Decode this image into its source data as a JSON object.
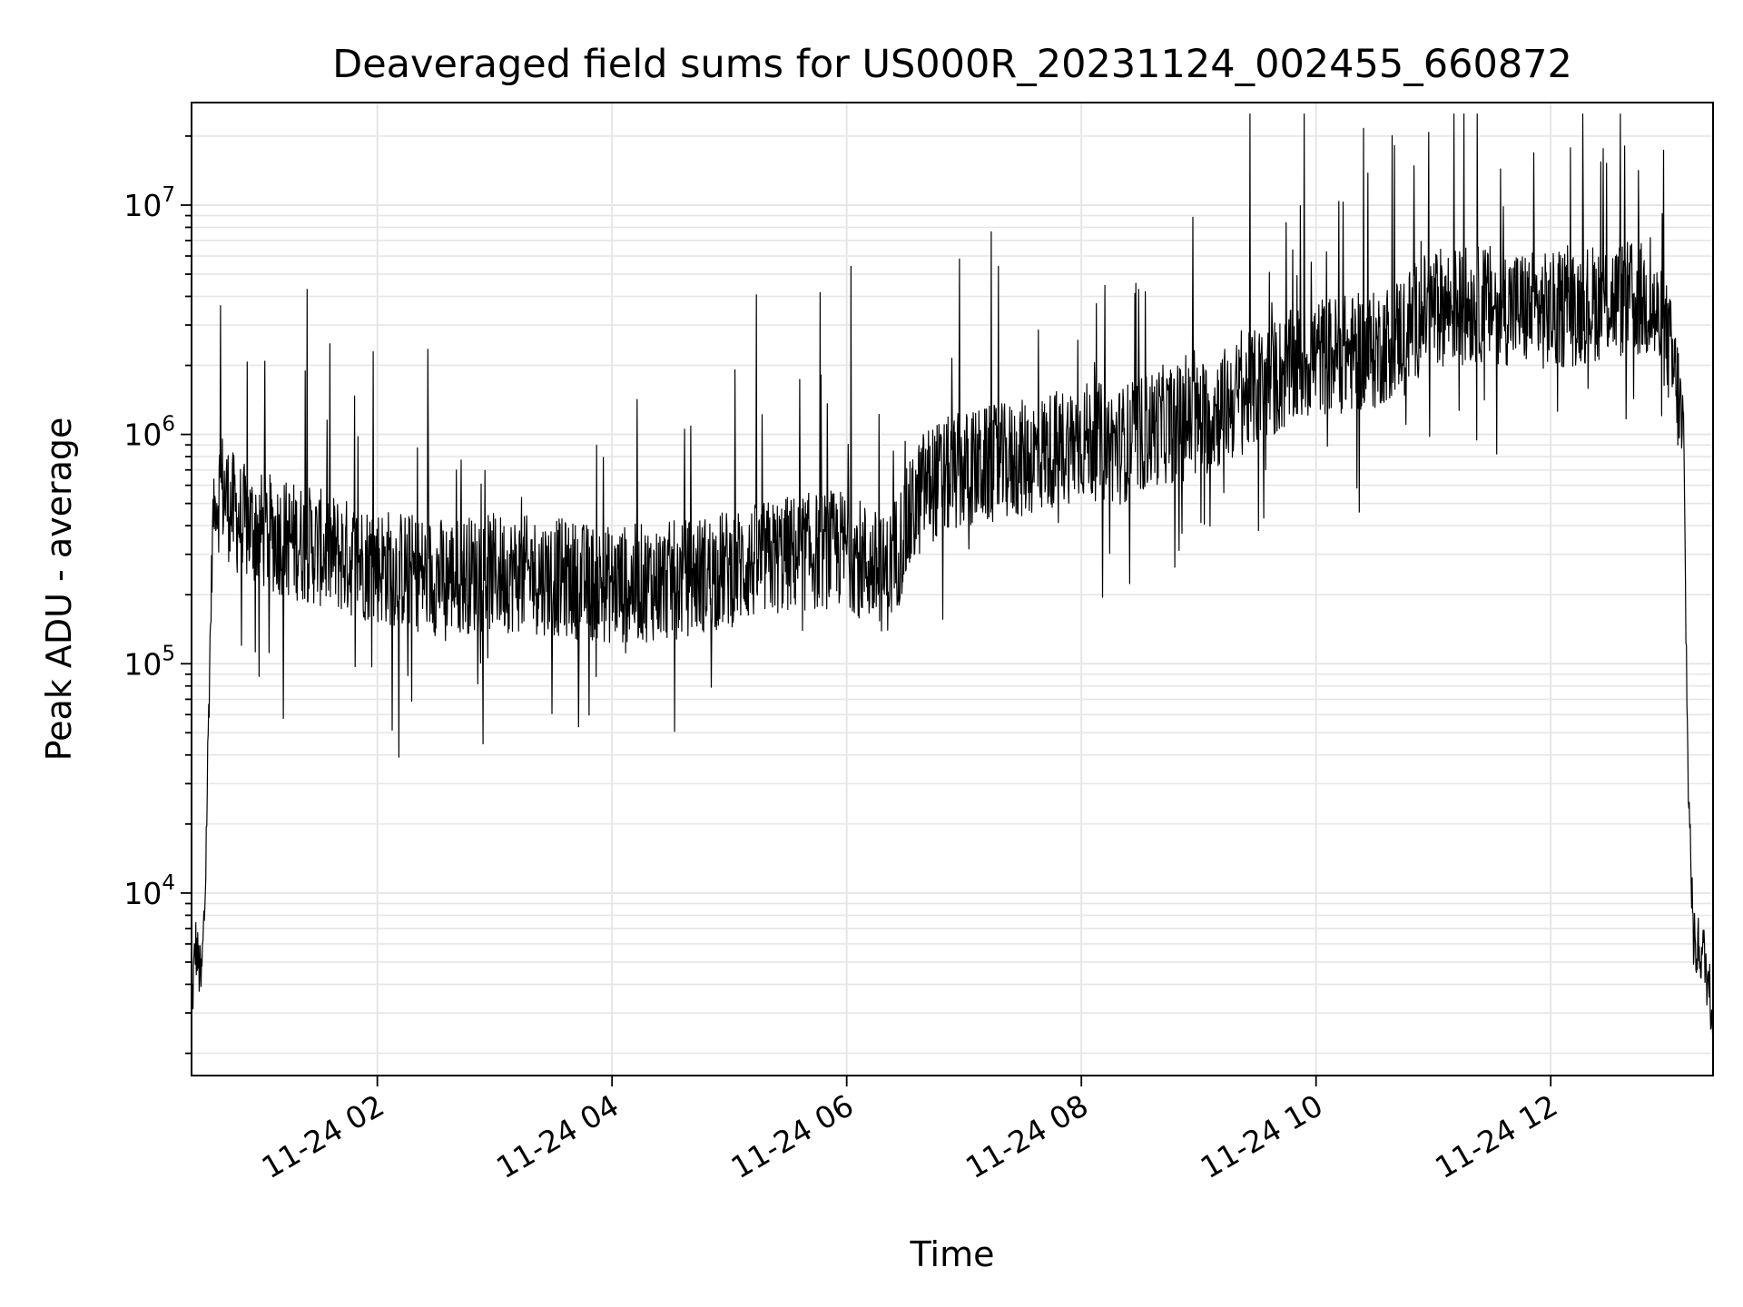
{
  "chart_data": {
    "type": "line",
    "title": "Deaveraged field sums for US000R_20231124_002455_660872",
    "xlabel": "Time",
    "ylabel": "Peak ADU - average",
    "yscale": "log",
    "ylim": [
      1600,
      28000000
    ],
    "xlim": [
      "2023-11-24 00:25",
      "2023-11-24 13:23"
    ],
    "grid": true,
    "line_color": "#000000",
    "grid_color": "#e6e6e6",
    "x_ticks": [
      "11-24 02",
      "11-24 04",
      "11-24 06",
      "11-24 08",
      "11-24 10",
      "11-24 12"
    ],
    "y_ticks": [
      {
        "base": "10",
        "exp": "4"
      },
      {
        "base": "10",
        "exp": "5"
      },
      {
        "base": "10",
        "exp": "6"
      },
      {
        "base": "10",
        "exp": "7"
      }
    ],
    "series": [
      {
        "x": [
          "2023-11-24 00:25",
          "2023-11-24 00:27",
          "2023-11-24 00:30",
          "2023-11-24 00:32",
          "2023-11-24 00:34",
          "2023-11-24 00:36",
          "2023-11-24 00:40",
          "2023-11-24 00:45",
          "2023-11-24 00:50",
          "2023-11-24 01:00",
          "2023-11-24 01:15",
          "2023-11-24 01:30",
          "2023-11-24 01:45",
          "2023-11-24 02:00",
          "2023-11-24 02:30",
          "2023-11-24 03:00",
          "2023-11-24 03:30",
          "2023-11-24 04:00",
          "2023-11-24 04:30",
          "2023-11-24 05:00",
          "2023-11-24 05:30",
          "2023-11-24 06:00",
          "2023-11-24 06:20",
          "2023-11-24 06:40",
          "2023-11-24 07:00",
          "2023-11-24 07:30",
          "2023-11-24 08:00",
          "2023-11-24 08:20",
          "2023-11-24 08:40",
          "2023-11-24 09:00",
          "2023-11-24 09:30",
          "2023-11-24 10:00",
          "2023-11-24 10:30",
          "2023-11-24 11:00",
          "2023-11-24 11:30",
          "2023-11-24 12:00",
          "2023-11-24 12:30",
          "2023-11-24 12:50",
          "2023-11-24 13:00",
          "2023-11-24 13:05",
          "2023-11-24 13:08",
          "2023-11-24 13:10",
          "2023-11-24 13:13",
          "2023-11-24 13:18",
          "2023-11-24 13:23"
        ],
        "y": [
          3000,
          6000,
          4000,
          10000,
          80000,
          450000,
          600000,
          480000,
          420000,
          380000,
          350000,
          320000,
          290000,
          270000,
          240000,
          250000,
          240000,
          220000,
          230000,
          260000,
          300000,
          320000,
          240000,
          600000,
          700000,
          780000,
          950000,
          900000,
          1100000,
          1150000,
          1600000,
          2200000,
          2300000,
          3600000,
          3700000,
          3400000,
          3900000,
          3800000,
          2500000,
          1500000,
          900000,
          40000,
          6000,
          5500,
          3000
        ]
      }
    ]
  }
}
